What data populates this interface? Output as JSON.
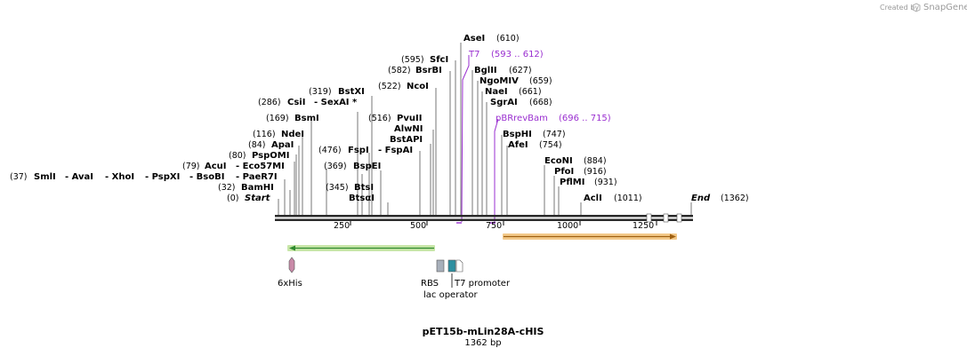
{
  "plasmid": {
    "name": "pET15b-mLin28A-cHIS",
    "length_label": "1362 bp"
  },
  "credit": {
    "prefix": "Created by",
    "brand": "SnapGene"
  },
  "ends": {
    "start_pos": "(0)",
    "start_label": "Start",
    "end_label": "End",
    "end_pos": "(1362)"
  },
  "ticks": [
    "250",
    "500",
    "750",
    "1000",
    "1250"
  ],
  "left_enzymes": {
    "r37": {
      "pos": "(37)",
      "n1": "SmlI",
      "n2": "- AvaI",
      "n3": "- XhoI",
      "n4": "- PspXI",
      "n5": "- BsoBI",
      "n6": "- PaeR7I"
    },
    "r79": {
      "pos": "(79)",
      "n1": "AcuI",
      "n2": "- Eco57MI"
    },
    "r286": {
      "pos": "(286)",
      "n1": "CsiI",
      "n2": "- SexAI *"
    },
    "r476": {
      "pos": "(476)",
      "n1": "FspI",
      "n2": "- FspAI"
    }
  },
  "enzymes": {
    "BamHI": {
      "name": "BamHI",
      "pos": "(32)"
    },
    "PspOMI": {
      "name": "PspOMI",
      "pos": "(80)"
    },
    "ApaI": {
      "name": "ApaI",
      "pos": "(84)"
    },
    "NdeI": {
      "name": "NdeI",
      "pos": "(116)"
    },
    "BsmI": {
      "name": "BsmI",
      "pos": "(169)"
    },
    "BstXI": {
      "name": "BstXI",
      "pos": "(319)"
    },
    "BtsI": {
      "name": "BtsI",
      "pos": "(345)"
    },
    "BtsqI": {
      "name": "BtsαI"
    },
    "BspEI": {
      "name": "BspEI",
      "pos": "(369)"
    },
    "PvuII": {
      "name": "PvuII",
      "pos": "(516)"
    },
    "AlwNI": {
      "name": "AlwNI"
    },
    "BstAPI": {
      "name": "BstAPI"
    },
    "NcoI": {
      "name": "NcoI",
      "pos": "(522)"
    },
    "BsrBI": {
      "name": "BsrBI",
      "pos": "(582)"
    },
    "SfcI": {
      "name": "SfcI",
      "pos": "(595)"
    },
    "AseI": {
      "name": "AseI",
      "pos": "(610)"
    },
    "BglII": {
      "name": "BglII",
      "pos": "(627)"
    },
    "NgoMIV": {
      "name": "NgoMIV",
      "pos": "(659)"
    },
    "NaeI": {
      "name": "NaeI",
      "pos": "(661)"
    },
    "SgrAI": {
      "name": "SgrAI",
      "pos": "(668)"
    },
    "BspHI": {
      "name": "BspHI",
      "pos": "(747)"
    },
    "AfeI": {
      "name": "AfeI",
      "pos": "(754)"
    },
    "EcoNI": {
      "name": "EcoNI",
      "pos": "(884)"
    },
    "PfoI": {
      "name": "PfoI",
      "pos": "(916)"
    },
    "PflMI": {
      "name": "PflMI",
      "pos": "(931)"
    },
    "AclI": {
      "name": "AclI",
      "pos": "(1011)"
    }
  },
  "primers": {
    "T7": {
      "name": "T7",
      "range": "(593 .. 612)"
    },
    "pBRrevBam": {
      "name": "pBRrevBam",
      "range": "(696 .. 715)"
    }
  },
  "features": {
    "his": "6xHis",
    "rbs": "RBS",
    "lac": "lac operator",
    "t7p": "T7 promoter"
  },
  "colors": {
    "backbone": "#2b2b2b",
    "primer": "#9a2fd0",
    "cds_left": "#7fc241",
    "cds_right": "#f0a030",
    "his_tag": "#c98aa8",
    "rbs": "#a8b0bb",
    "lac_operator": "#2e8fa0",
    "promoter": "#ffffff"
  }
}
